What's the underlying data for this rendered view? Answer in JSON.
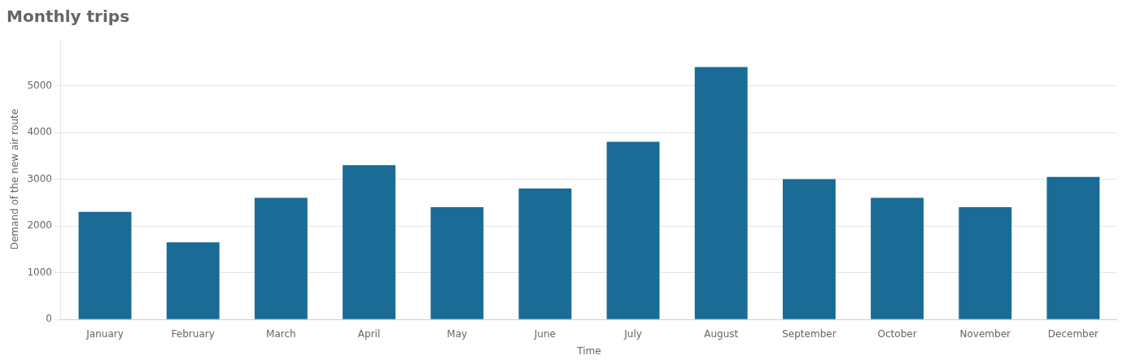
{
  "chart_data": {
    "type": "bar",
    "title": "Monthly trips",
    "categories": [
      "January",
      "February",
      "March",
      "April",
      "May",
      "June",
      "July",
      "August",
      "September",
      "October",
      "November",
      "December"
    ],
    "values": [
      2300,
      1650,
      2600,
      3300,
      2400,
      2800,
      3800,
      5400,
      3000,
      2600,
      2400,
      3050
    ],
    "color": "#1a6b96",
    "xlabel": "Time",
    "ylabel": "Demand of the new air route",
    "ylim": [
      0,
      6000
    ],
    "yticks": [
      0,
      1000,
      2000,
      3000,
      4000,
      5000
    ],
    "grid": true
  }
}
